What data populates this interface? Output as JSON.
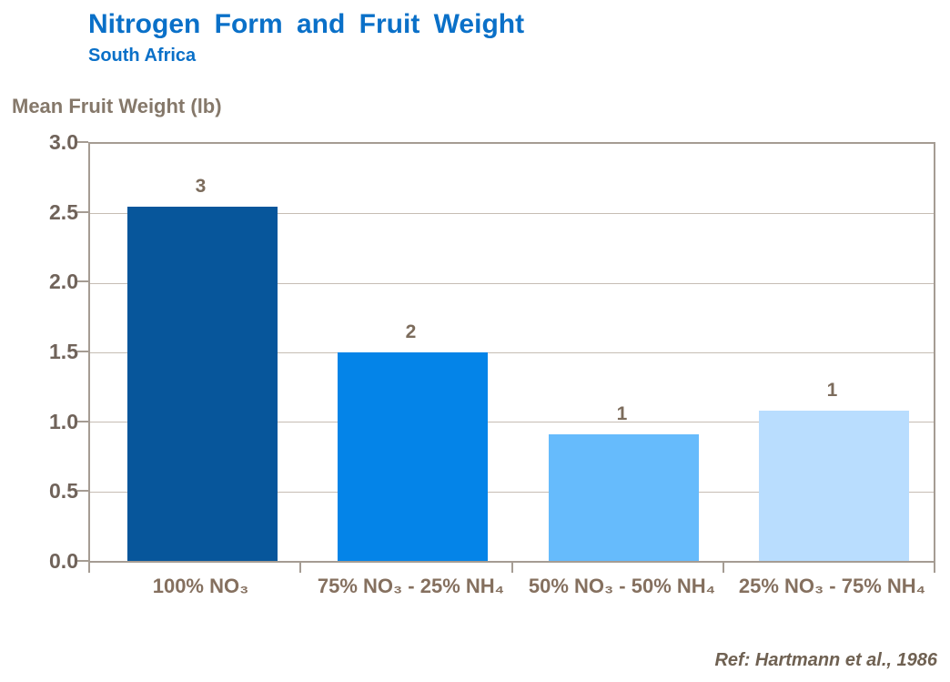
{
  "header": {
    "title": "Nitrogen Form and Fruit Weight",
    "subtitle": "South Africa"
  },
  "footer": {
    "reference": "Ref: Hartmann et al., 1986"
  },
  "colors": {
    "title_blue": "#0A70C8",
    "axis_line": "#A59C93",
    "gridline": "#C6BDB4",
    "axis_text": "#85786A",
    "tick_text": "#70635A",
    "category_text": "#85705F",
    "value_label_text": "#7C6C5C",
    "reference_text": "#6F6152"
  },
  "chart_data": {
    "type": "bar",
    "title": "Nitrogen Form and Fruit Weight",
    "subtitle": "South Africa",
    "xlabel": "",
    "ylabel": "Mean Fruit Weight (lb)",
    "ylim": [
      0.0,
      3.0
    ],
    "ytick_step": 0.5,
    "ytick_labels": [
      "3.0",
      "2.5",
      "2.0",
      "1.5",
      "1.0",
      "0.5",
      "0.0"
    ],
    "grid": true,
    "legend": false,
    "categories": [
      "100% NO₃",
      "75% NO₃ - 25% NH₄",
      "50% NO₃ - 50% NH₄",
      "25% NO₃ - 75% NH₄"
    ],
    "values": [
      2.55,
      1.5,
      0.91,
      1.08
    ],
    "bar_value_labels": [
      "3",
      "2",
      "1",
      "1"
    ],
    "bar_colors": [
      "#07569B",
      "#0484E8",
      "#66BBFC",
      "#B9DDFE"
    ],
    "annotation": "Ref: Hartmann et al., 1986"
  }
}
